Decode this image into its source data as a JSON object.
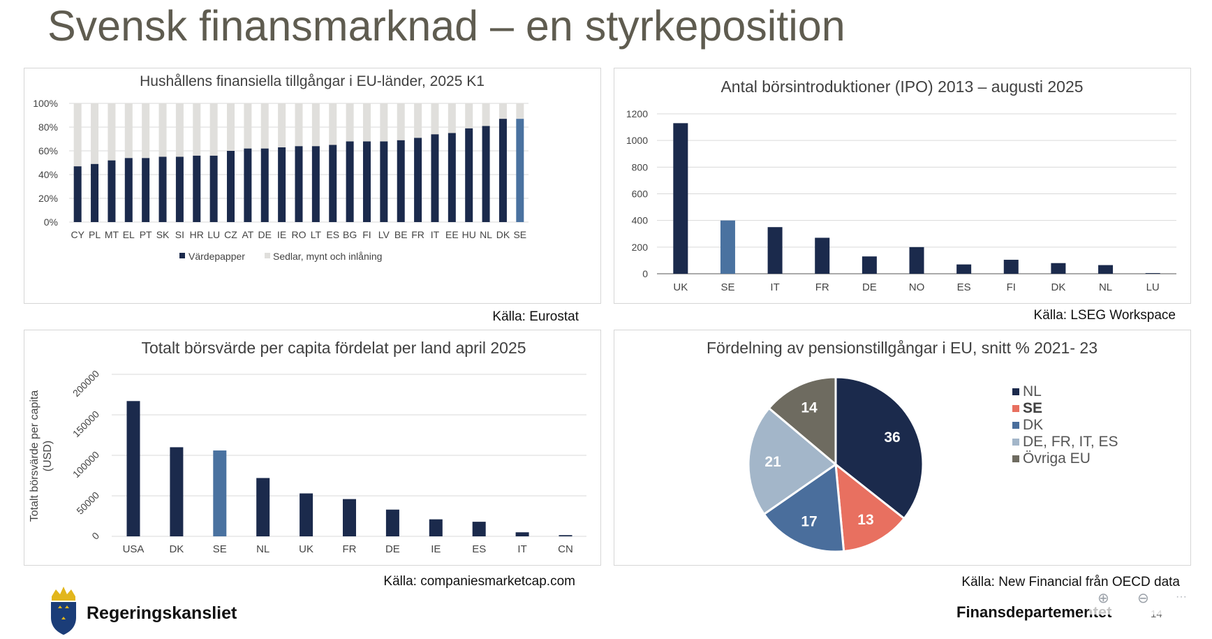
{
  "page": {
    "title": "Svensk finansmarknad – en styrkeposition",
    "org_name": "Regeringskansliet",
    "dept_name": "Finansdepartementet",
    "page_number": "14",
    "toolbar": {
      "zoom_in_icon": "zoom-in-icon",
      "zoom_out_icon": "zoom-out-icon",
      "more_icon": "more-icon",
      "more_label": "···"
    }
  },
  "colors": {
    "navy": "#1b2a4c",
    "se_blue": "#4a72a0",
    "light_gray": "#e0dfdc",
    "salmon": "#e87060",
    "steel": "#4a6e9c",
    "pale_blue": "#a3b6c9",
    "taupe": "#6e6b60",
    "grid": "#d9d9d9"
  },
  "sources": {
    "c1": "Källa: Eurostat",
    "c2": "Källa: LSEG Workspace",
    "c3": "Källa: companiesmarketcap.com",
    "c4": "Källa: New Financial från OECD data"
  },
  "chart_data": [
    {
      "id": "households",
      "type": "bar",
      "stacked": true,
      "title": "Hushållens finansiella tillgångar i EU-länder, 2025 K1",
      "categories": [
        "CY",
        "PL",
        "MT",
        "EL",
        "PT",
        "SK",
        "SI",
        "HR",
        "LU",
        "CZ",
        "AT",
        "DE",
        "IE",
        "RO",
        "LT",
        "ES",
        "BG",
        "FI",
        "LV",
        "BE",
        "FR",
        "IT",
        "EE",
        "HU",
        "NL",
        "DK",
        "SE"
      ],
      "series": [
        {
          "name": "Värdepapper",
          "values": [
            47,
            49,
            52,
            54,
            54,
            55,
            55,
            56,
            56,
            60,
            62,
            62,
            63,
            64,
            64,
            65,
            68,
            68,
            68,
            69,
            71,
            74,
            75,
            79,
            81,
            87,
            87
          ]
        },
        {
          "name": "Sedlar, mynt och inlåning",
          "values": [
            53,
            51,
            48,
            46,
            46,
            45,
            45,
            44,
            44,
            40,
            38,
            38,
            37,
            36,
            36,
            35,
            32,
            32,
            32,
            31,
            29,
            26,
            25,
            21,
            19,
            13,
            13
          ]
        }
      ],
      "highlight": "SE",
      "yticks": [
        "0%",
        "20%",
        "40%",
        "60%",
        "80%",
        "100%"
      ],
      "ylim": [
        0,
        100
      ],
      "legend": [
        "Värdepapper",
        "Sedlar, mynt och inlåning"
      ]
    },
    {
      "id": "ipo",
      "type": "bar",
      "title": "Antal börsintroduktioner (IPO) 2013 – augusti 2025",
      "categories": [
        "UK",
        "SE",
        "IT",
        "FR",
        "DE",
        "NO",
        "ES",
        "FI",
        "DK",
        "NL",
        "LU"
      ],
      "values": [
        1130,
        400,
        350,
        270,
        130,
        200,
        70,
        105,
        80,
        65,
        5
      ],
      "highlight": "SE",
      "yticks": [
        "0",
        "200",
        "400",
        "600",
        "800",
        "1000",
        "1200"
      ],
      "ylim": [
        0,
        1200
      ]
    },
    {
      "id": "marketcap",
      "type": "bar",
      "title": "Totalt börsvärde per capita fördelat per land april 2025",
      "ylabel_line1": "Totalt börsvärde per capita",
      "ylabel_line2": "(USD)",
      "categories": [
        "USA",
        "DK",
        "SE",
        "NL",
        "UK",
        "FR",
        "DE",
        "IE",
        "ES",
        "IT",
        "CN"
      ],
      "values": [
        167000,
        110000,
        106000,
        72000,
        53000,
        46000,
        33000,
        21000,
        18000,
        5000,
        1500
      ],
      "highlight": "SE",
      "yticks": [
        "0",
        "50000",
        "100000",
        "150000",
        "200000"
      ],
      "ylim": [
        0,
        200000
      ]
    },
    {
      "id": "pension",
      "type": "pie",
      "title": "Fördelning av pensionstillgångar i EU, snitt % 2021- 23",
      "labels": [
        "NL",
        "SE",
        "DK",
        "DE, FR, IT, ES",
        "Övriga EU"
      ],
      "values": [
        36,
        13,
        17,
        21,
        14
      ],
      "value_labels": [
        "36",
        "13",
        "17",
        "21",
        "14"
      ],
      "legend_bold": "SE"
    }
  ]
}
